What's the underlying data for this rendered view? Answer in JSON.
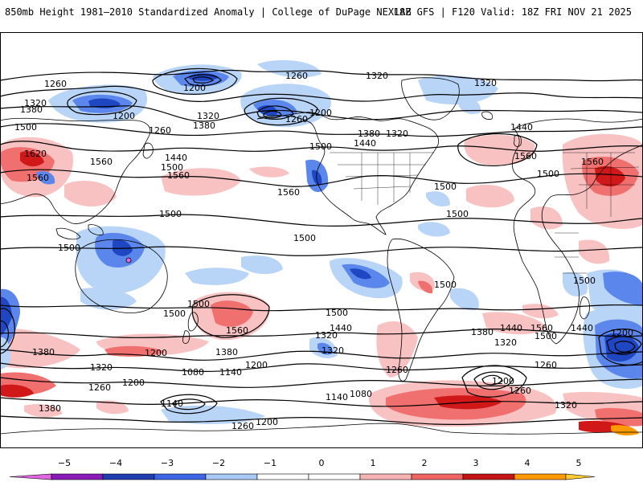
{
  "header": {
    "title": "850mb Height 1981–2010 Standardized Anomaly | College of DuPage NEXLAB",
    "run_info": "18Z GFS | F120 Valid: 18Z FRI NOV 21 2025"
  },
  "colorbar": {
    "ticks": [
      "−5",
      "−4",
      "−3",
      "−2",
      "−1",
      "0",
      "1",
      "2",
      "3",
      "4",
      "5"
    ],
    "colors": [
      "#e066e0",
      "#8a1ab8",
      "#1f3fb0",
      "#3d66e6",
      "#a8c8f5",
      "#ffffff",
      "#ffffff",
      "#f7b3b3",
      "#f06464",
      "#c41414",
      "#ff9900",
      "#ffcc33"
    ]
  },
  "colors": {
    "anomaly_neg_light": "#b8d4f7",
    "anomaly_neg_mid": "#5b86eb",
    "anomaly_neg_strong": "#1f47c2",
    "anomaly_pos_light": "#f9c2c2",
    "anomaly_pos_mid": "#f07070",
    "anomaly_pos_strong": "#d01818",
    "contour": "#000000",
    "coast": "#000000"
  },
  "contour_labels": [
    {
      "text": "1260"
    },
    {
      "text": "1200"
    },
    {
      "text": "1260"
    },
    {
      "text": "1320"
    },
    {
      "text": "1320"
    },
    {
      "text": "1320"
    },
    {
      "text": "1380"
    },
    {
      "text": "1200"
    },
    {
      "text": "1260"
    },
    {
      "text": "1380"
    },
    {
      "text": "1260"
    },
    {
      "text": "1200"
    },
    {
      "text": "1320"
    },
    {
      "text": "1380"
    },
    {
      "text": "1320"
    },
    {
      "text": "1440"
    },
    {
      "text": "1500"
    },
    {
      "text": "1620"
    },
    {
      "text": "1560"
    },
    {
      "text": "1560"
    },
    {
      "text": "1440"
    },
    {
      "text": "1500"
    },
    {
      "text": "1560"
    },
    {
      "text": "1560"
    },
    {
      "text": "1500"
    },
    {
      "text": "1440"
    },
    {
      "text": "1560"
    },
    {
      "text": "1500"
    },
    {
      "text": "1560"
    },
    {
      "text": "1500"
    },
    {
      "text": "1500"
    },
    {
      "text": "1500"
    },
    {
      "text": "1500"
    },
    {
      "text": "1500"
    },
    {
      "text": "1500"
    },
    {
      "text": "1500"
    },
    {
      "text": "1500"
    },
    {
      "text": "1500"
    },
    {
      "text": "1500"
    },
    {
      "text": "1560"
    },
    {
      "text": "1440"
    },
    {
      "text": "1320"
    },
    {
      "text": "1380"
    },
    {
      "text": "1380"
    },
    {
      "text": "1440"
    },
    {
      "text": "1560"
    },
    {
      "text": "1440"
    },
    {
      "text": "1500"
    },
    {
      "text": "1320"
    },
    {
      "text": "1260"
    },
    {
      "text": "1380"
    },
    {
      "text": "1200"
    },
    {
      "text": "1200"
    },
    {
      "text": "1320"
    },
    {
      "text": "1260"
    },
    {
      "text": "1320"
    },
    {
      "text": "1080"
    },
    {
      "text": "1140"
    },
    {
      "text": "1200"
    },
    {
      "text": "1140"
    },
    {
      "text": "1080"
    },
    {
      "text": "1260"
    },
    {
      "text": "1200"
    },
    {
      "text": "1260"
    },
    {
      "text": "1200"
    },
    {
      "text": "1140"
    },
    {
      "text": "1260"
    },
    {
      "text": "1380"
    },
    {
      "text": "1200"
    },
    {
      "text": "1320"
    }
  ]
}
